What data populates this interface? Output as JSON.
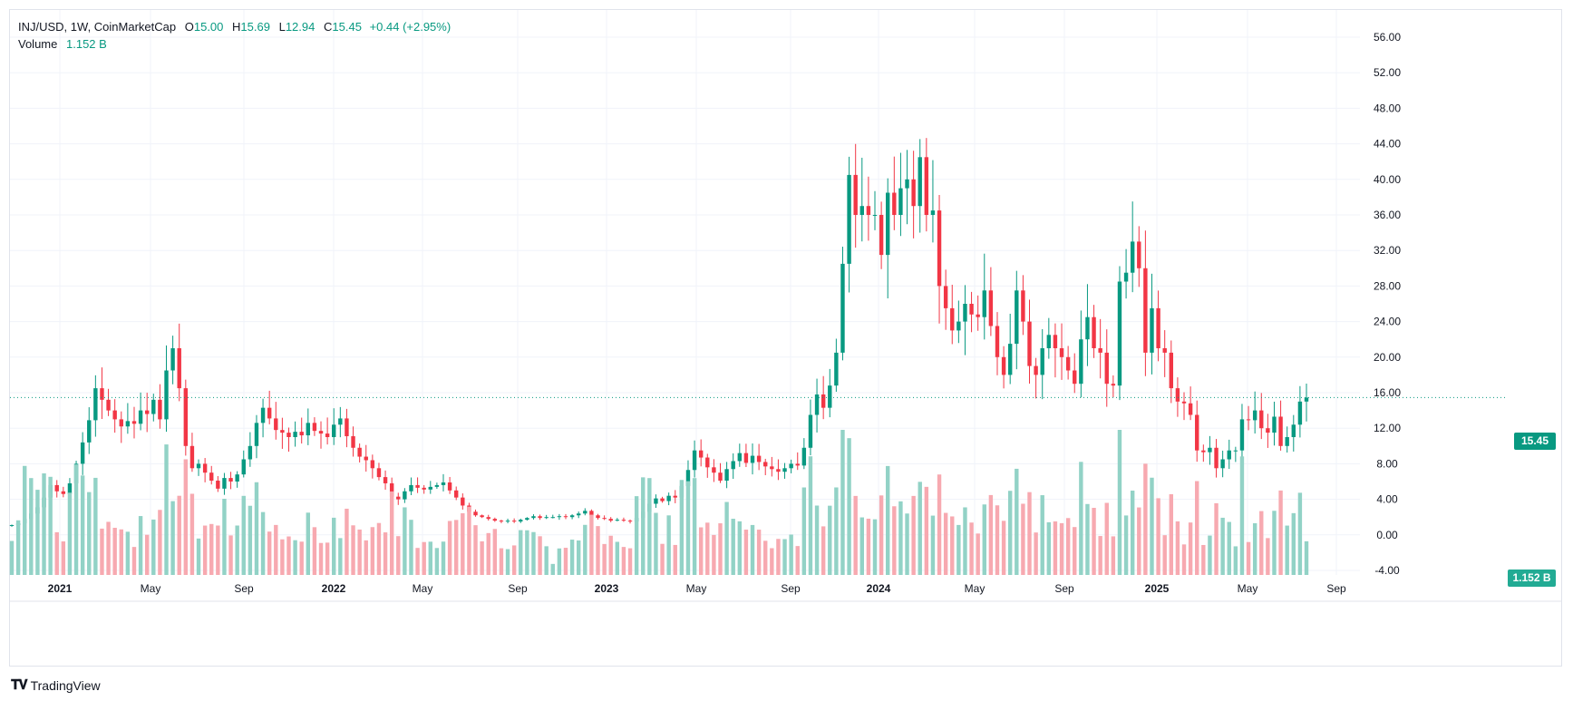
{
  "legend": {
    "symbol": "INJ/USD, 1W, CoinMarketCap",
    "o_label": "O",
    "o_value": "15.00",
    "h_label": "H",
    "h_value": "15.69",
    "l_label": "L",
    "l_value": "12.94",
    "c_label": "C",
    "c_value": "15.45",
    "change": "+0.44 (+2.95%)",
    "volume_label": "Volume",
    "volume_value": "1.152 B"
  },
  "last_price_label": "15.45",
  "last_volume_label": "1.152 B",
  "footer": {
    "brand": "TradingView"
  },
  "colors": {
    "up": "#089981",
    "down": "#f23645",
    "vol_up": "#92d2c6",
    "vol_down": "#f7a9b0"
  },
  "chart_data": {
    "type": "candlestick",
    "symbol": "INJ/USD",
    "interval": "1W",
    "y_ticks": [
      "56.00",
      "52.00",
      "48.00",
      "44.00",
      "40.00",
      "36.00",
      "32.00",
      "28.00",
      "24.00",
      "20.00",
      "16.00",
      "12.00",
      "8.00",
      "4.00",
      "0.00",
      "-4.00"
    ],
    "x_ticks": [
      "2021",
      "May",
      "Sep",
      "2022",
      "May",
      "Sep",
      "2023",
      "May",
      "Sep",
      "2024",
      "May",
      "Sep",
      "2025",
      "May",
      "Sep"
    ],
    "ylim": [
      -4,
      57
    ],
    "last_close": 15.45,
    "grid": true,
    "series_close": [
      1.1,
      1.3,
      1.8,
      2.4,
      3.1,
      4.2,
      5.6,
      4.9,
      4.6,
      5.8,
      8.0,
      10.4,
      12.9,
      16.5,
      15.2,
      14.0,
      13.0,
      12.2,
      12.8,
      12.5,
      14.0,
      13.6,
      15.2,
      13.0,
      18.5,
      21.0,
      16.5,
      10.0,
      7.5,
      8.0,
      7.0,
      6.1,
      5.2,
      6.4,
      6.0,
      6.8,
      8.5,
      10.0,
      12.6,
      14.3,
      13.1,
      11.8,
      11.5,
      11.0,
      11.6,
      11.2,
      12.6,
      11.7,
      11.4,
      11.0,
      12.4,
      13.1,
      11.1,
      9.8,
      8.8,
      8.4,
      7.5,
      6.5,
      5.8,
      4.3,
      4.0,
      4.9,
      5.6,
      5.3,
      5.1,
      5.4,
      5.6,
      5.9,
      5.0,
      4.2,
      3.3,
      2.6,
      2.2,
      2.0,
      1.8,
      1.6,
      1.5,
      1.6,
      1.5,
      1.7,
      1.9,
      2.1,
      1.9,
      2.0,
      2.0,
      2.1,
      2.0,
      2.2,
      2.4,
      2.7,
      2.2,
      1.9,
      1.8,
      1.6,
      1.7,
      1.6,
      1.5,
      1.9,
      2.6,
      3.5,
      4.1,
      3.8,
      4.4,
      4.2,
      5.5,
      7.3,
      9.5,
      8.7,
      7.6,
      7.0,
      6.1,
      7.4,
      8.3,
      9.2,
      8.1,
      8.9,
      8.2,
      7.7,
      7.4,
      7.1,
      7.5,
      8.0,
      7.8,
      9.8,
      13.5,
      15.8,
      14.3,
      16.8,
      20.5,
      30.5,
      40.5,
      36.0,
      37.0,
      36.0,
      36.0,
      31.5,
      38.5,
      36.0,
      39.0,
      40.0,
      37.0,
      42.5,
      36.0,
      36.5,
      28.0,
      25.5,
      23.0,
      24.0,
      26.0,
      24.8,
      24.5,
      27.5,
      23.5,
      20.0,
      18.0,
      21.5,
      27.5,
      24.0,
      19.0,
      18.0,
      21.0,
      22.5,
      21.0,
      20.0,
      18.5,
      17.0,
      22.0,
      24.5,
      21.0,
      20.5,
      17.0,
      16.8,
      28.5,
      29.5,
      33.0,
      30.0,
      20.5,
      25.5,
      21.0,
      20.5,
      16.5,
      15.0,
      14.8,
      13.5,
      9.5,
      9.3,
      9.8,
      7.5,
      8.5,
      9.5,
      9.5,
      13.0,
      12.9,
      14.0,
      12.0,
      11.5,
      13.3,
      10.0,
      11.0,
      12.4,
      15.0,
      15.45
    ],
    "volume_note": "weekly volume bars shown in lower pane"
  }
}
